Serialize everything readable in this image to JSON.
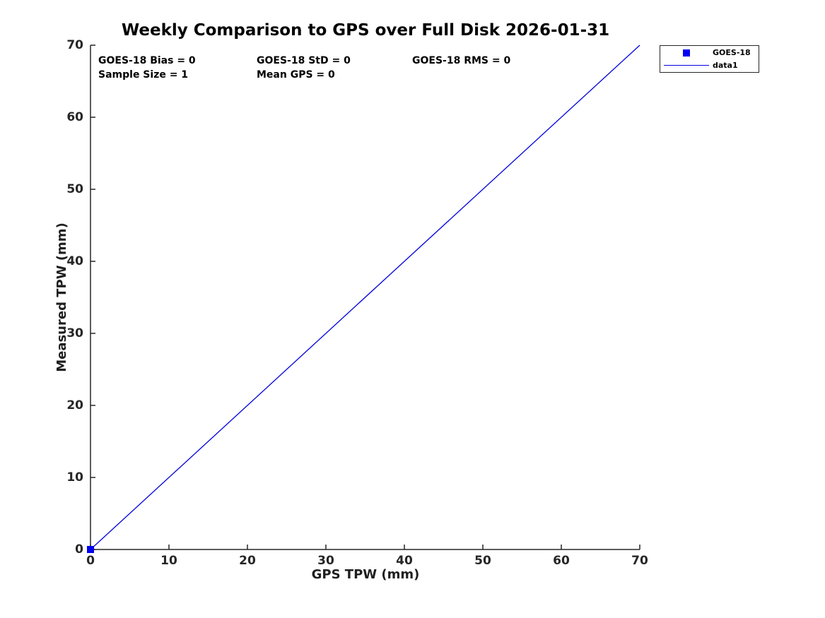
{
  "chart_data": {
    "type": "scatter",
    "title": "Weekly Comparison to GPS over Full Disk 2026-01-31",
    "xlabel": "GPS TPW (mm)",
    "ylabel": "Measured TPW (mm)",
    "xlim": [
      0,
      70
    ],
    "ylim": [
      0,
      70
    ],
    "x_ticks": [
      0,
      10,
      20,
      30,
      40,
      50,
      60,
      70
    ],
    "y_ticks": [
      0,
      10,
      20,
      30,
      40,
      50,
      60,
      70
    ],
    "grid": false,
    "legend_position": "outside-top-right",
    "axis_color": "#262626",
    "series": [
      {
        "name": "GOES-18",
        "type": "scatter",
        "marker": "square",
        "color": "#0000f0",
        "x": [
          0
        ],
        "y": [
          0
        ]
      },
      {
        "name": "data1",
        "type": "line",
        "color": "#0000dd",
        "x": [
          0,
          70
        ],
        "y": [
          0,
          70
        ]
      }
    ],
    "annotations": {
      "bias": "GOES-18 Bias = 0",
      "std": "GOES-18 StD = 0",
      "rms": "GOES-18 RMS = 0",
      "sample": "Sample Size = 1",
      "mean": "Mean GPS = 0"
    }
  }
}
